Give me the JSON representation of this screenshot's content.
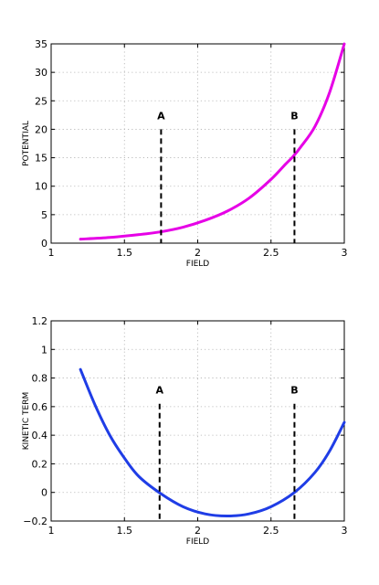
{
  "chart_data": [
    {
      "type": "line",
      "xlabel": "FIELD",
      "ylabel": "POTENTIAL",
      "xlim": [
        1,
        3
      ],
      "ylim": [
        0,
        35
      ],
      "xticks": [
        "1",
        "1.5",
        "2",
        "2.5",
        "3"
      ],
      "yticks": [
        "0",
        "5",
        "10",
        "15",
        "20",
        "25",
        "30",
        "35"
      ],
      "grid": true,
      "series": [
        {
          "color": "#e600e6",
          "x": [
            1.2,
            1.4,
            1.6,
            1.75,
            1.9,
            2.05,
            2.2,
            2.35,
            2.5,
            2.6,
            2.65,
            2.7,
            2.8,
            2.9,
            3.0
          ],
          "y": [
            0.7,
            1.0,
            1.5,
            2.0,
            2.8,
            4.0,
            5.6,
            7.9,
            11.2,
            13.9,
            15.2,
            16.8,
            20.5,
            26.5,
            35.0
          ]
        }
      ],
      "markers": [
        {
          "label": "A",
          "x": 1.75,
          "y_top": 20
        },
        {
          "label": "B",
          "x": 2.66,
          "y_top": 20
        }
      ]
    },
    {
      "type": "line",
      "xlabel": "FIELD",
      "ylabel": "KINETIC TERM",
      "xlim": [
        1,
        3
      ],
      "ylim": [
        -0.2,
        1.2
      ],
      "xticks": [
        "1",
        "1.5",
        "2",
        "2.5",
        "3"
      ],
      "yticks": [
        "−0.2",
        "0",
        "0.2",
        "0.4",
        "0.6",
        "0.8",
        "1",
        "1.2"
      ],
      "grid": true,
      "series": [
        {
          "color": "#1f3de6",
          "x": [
            1.2,
            1.3,
            1.4,
            1.5,
            1.6,
            1.75,
            1.9,
            2.05,
            2.2,
            2.35,
            2.5,
            2.66,
            2.8,
            2.9,
            3.0
          ],
          "y": [
            0.86,
            0.61,
            0.4,
            0.24,
            0.11,
            -0.01,
            -0.1,
            -0.15,
            -0.165,
            -0.15,
            -0.1,
            0.0,
            0.14,
            0.29,
            0.49
          ]
        }
      ],
      "markers": [
        {
          "label": "A",
          "x": 1.74,
          "y_top": 0.62
        },
        {
          "label": "B",
          "x": 2.66,
          "y_top": 0.62
        }
      ]
    }
  ]
}
